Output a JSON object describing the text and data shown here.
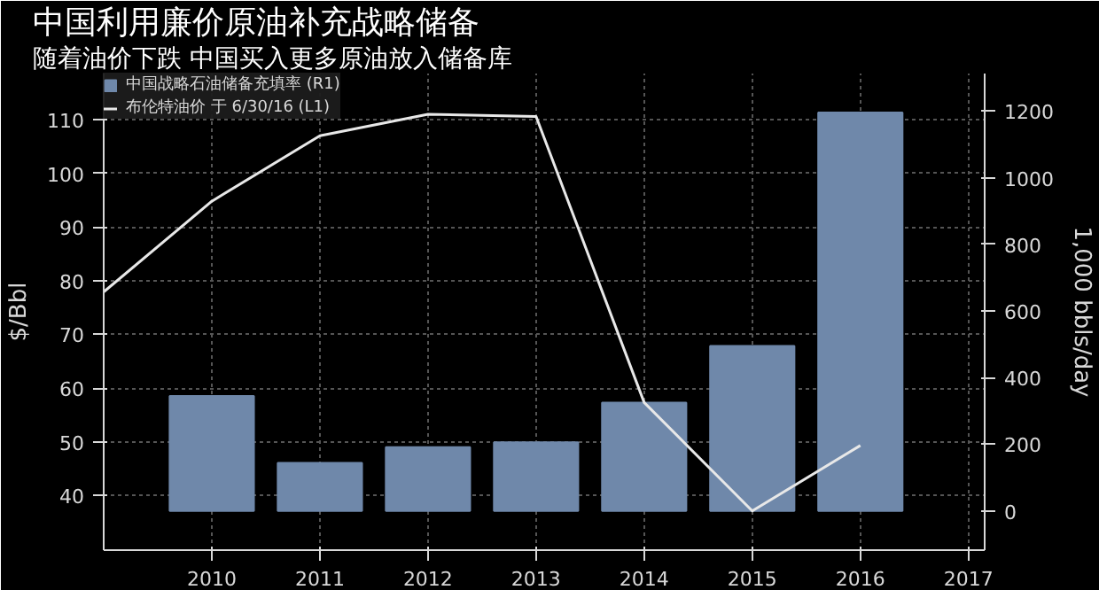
{
  "chart_data": {
    "type": "bar",
    "title": "中国利用廉价原油补充战略储备",
    "subtitle": "随着油价下跌 中国买入更多原油放入储备库",
    "ylabel": "$/Bbl",
    "y2label": "1,000 bbls/day",
    "x": [
      2010,
      2011,
      2012,
      2013,
      2014,
      2015,
      2016
    ],
    "series": [
      {
        "name": "中国战略石油储备充填率 (R1)",
        "axis": "y2",
        "color": "#6f88aa",
        "values": [
          345,
          144,
          191,
          206,
          325,
          495,
          1196
        ]
      },
      {
        "name": "布伦特油价 于 6/30/16 (L1)",
        "type": "line",
        "color": "#e8e8e8",
        "x": [
          2009,
          2010,
          2011,
          2012,
          2013,
          2014,
          2015,
          2016
        ],
        "values": [
          77.9,
          94.8,
          107,
          111,
          110.6,
          57.3,
          37.1,
          49.3
        ]
      }
    ],
    "xlim": [
      2009,
      2017.15
    ],
    "xticks": [
      2010,
      2011,
      2012,
      2013,
      2014,
      2015,
      2016,
      2017
    ],
    "ylim": [
      29.8,
      118.6
    ],
    "yticks": [
      40,
      50,
      60,
      70,
      80,
      90,
      100,
      110
    ],
    "y2lim": [
      -118,
      1313
    ],
    "y2ticks": [
      0,
      200,
      400,
      600,
      800,
      1000,
      1200
    ],
    "grid": true,
    "legend": "top left"
  }
}
